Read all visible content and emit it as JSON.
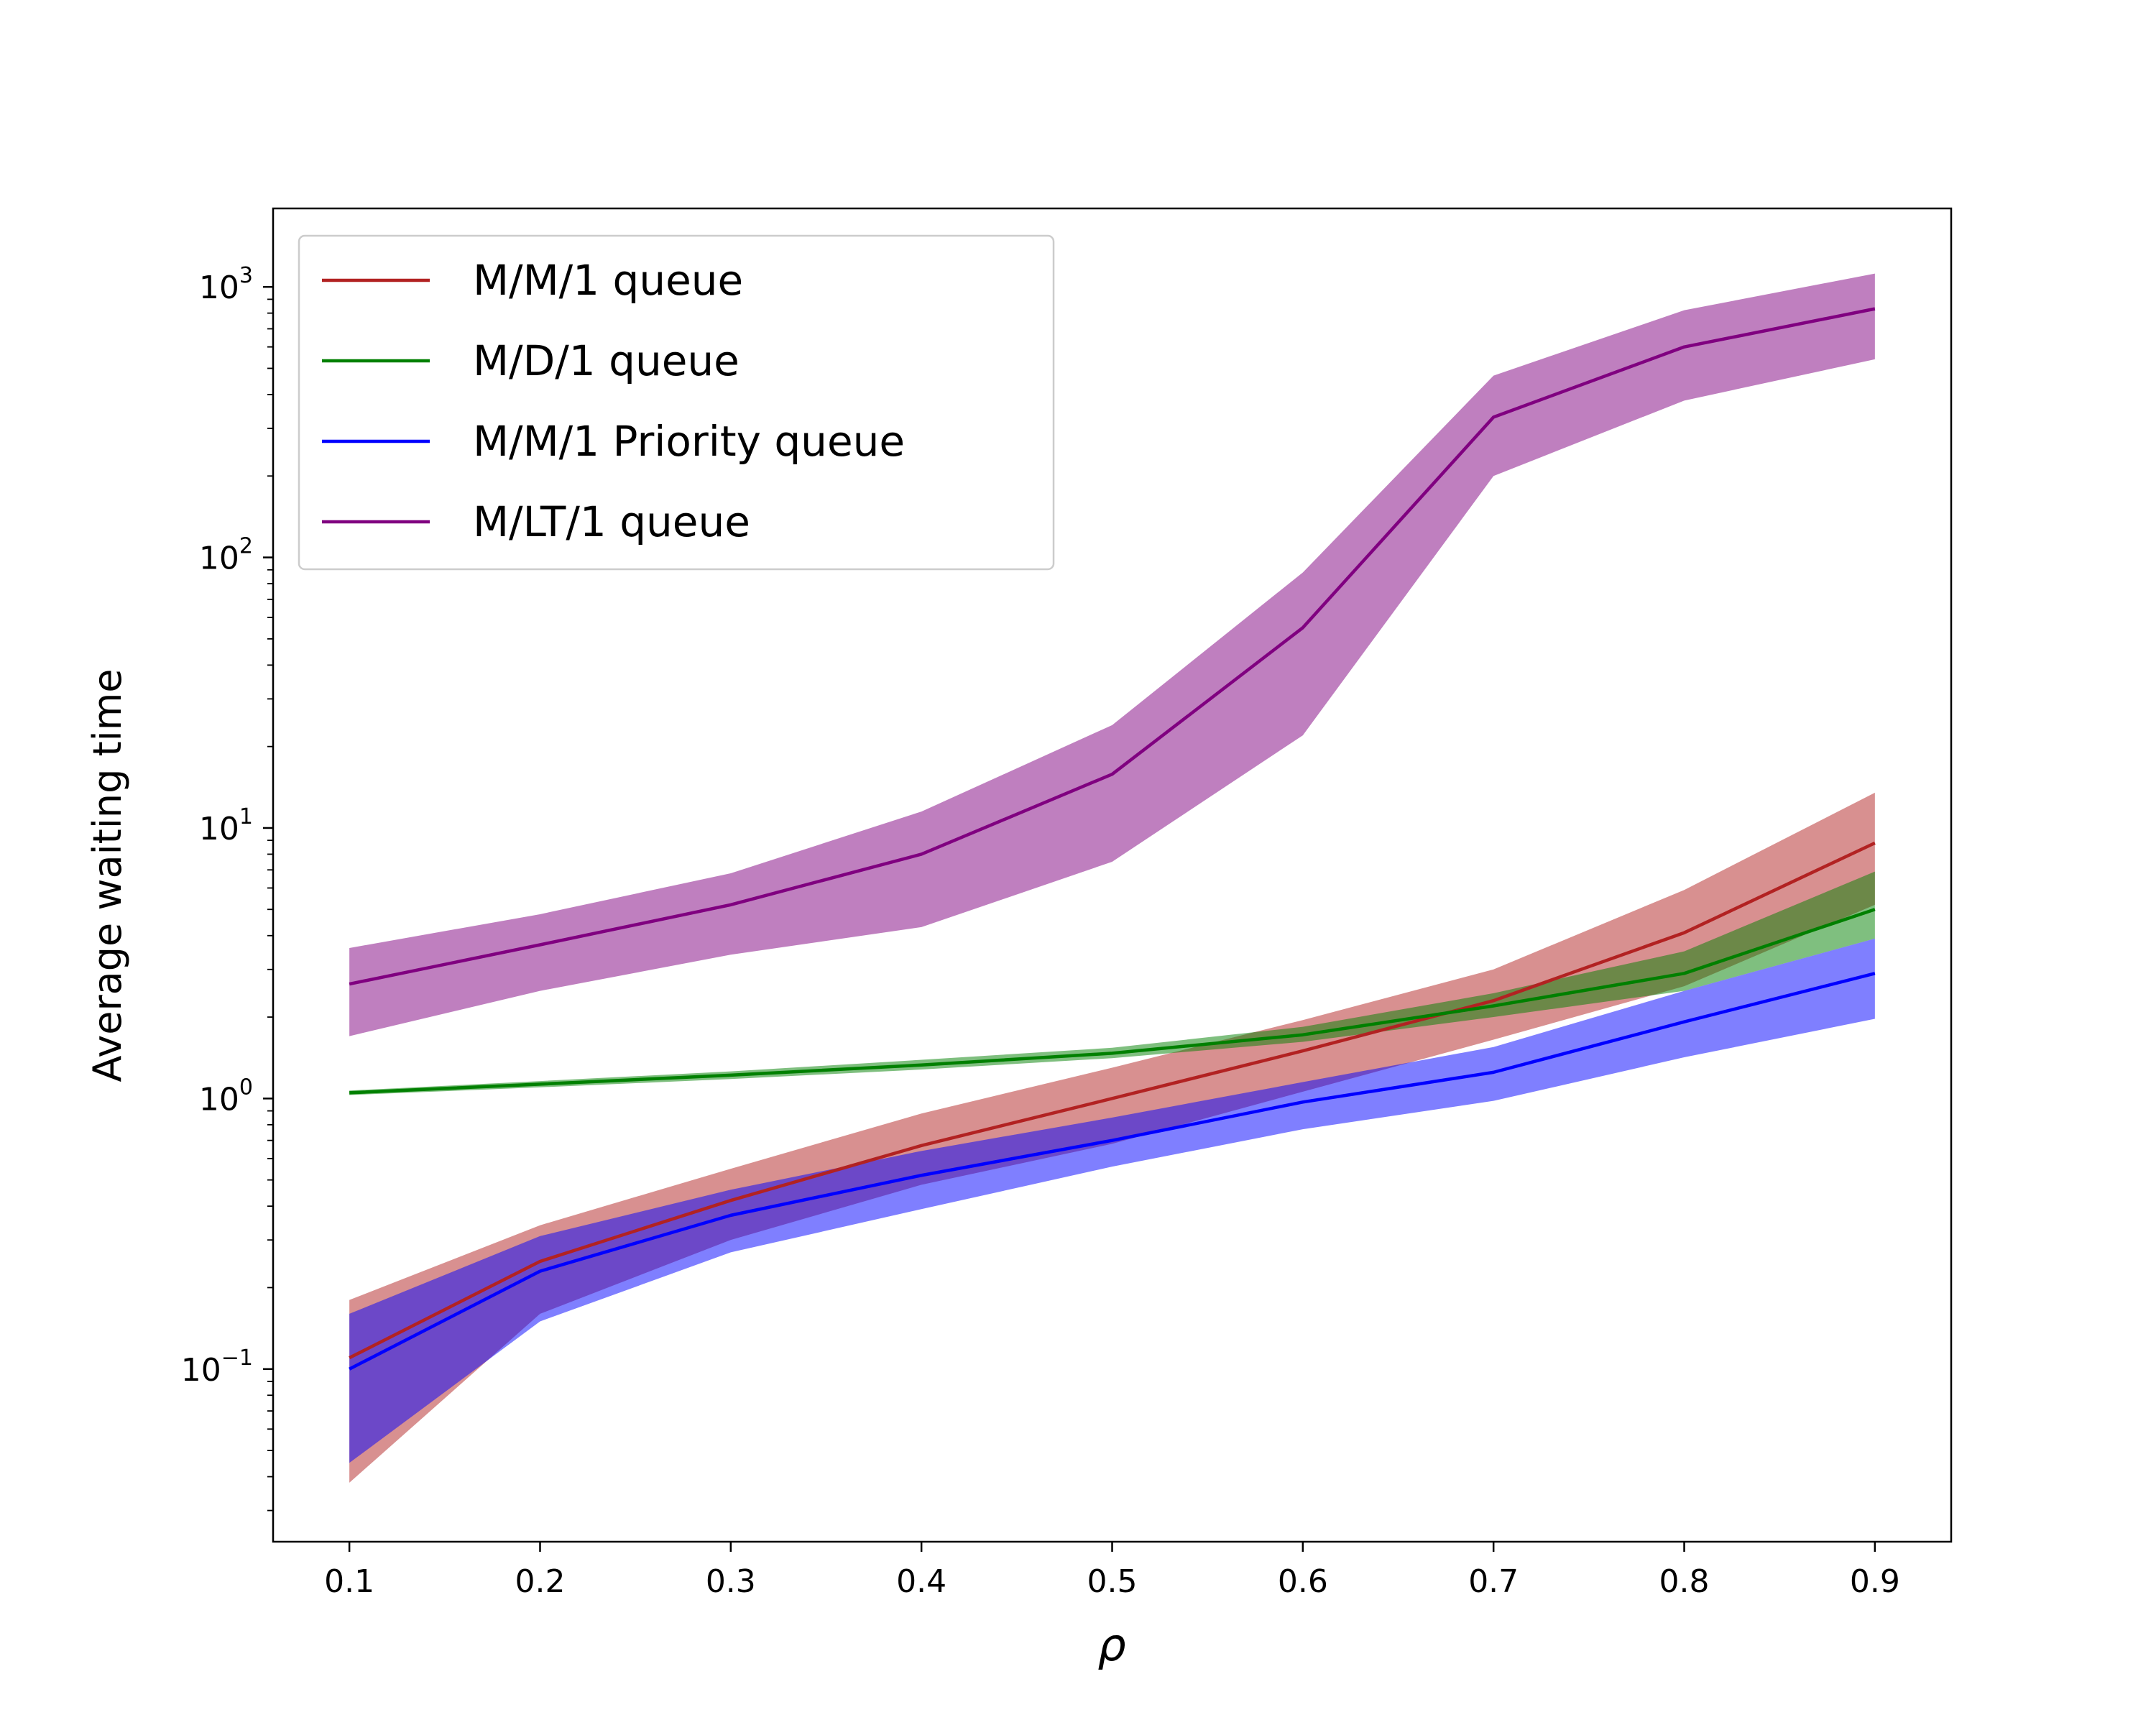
{
  "chart_data": {
    "type": "line",
    "xlabel": "ρ",
    "ylabel": "Average waiting time",
    "yscale": "log",
    "xlim": [
      0.06,
      0.94
    ],
    "ylim": [
      0.023,
      1950
    ],
    "x": [
      0.1,
      0.2,
      0.3,
      0.4,
      0.5,
      0.6,
      0.7,
      0.8,
      0.9
    ],
    "x_ticks": [
      "0.1",
      "0.2",
      "0.3",
      "0.4",
      "0.5",
      "0.6",
      "0.7",
      "0.8",
      "0.9"
    ],
    "y_ticks": [
      {
        "value": 0.1,
        "base": "10",
        "exp": "−1"
      },
      {
        "value": 1,
        "base": "10",
        "exp": "0"
      },
      {
        "value": 10,
        "base": "10",
        "exp": "1"
      },
      {
        "value": 100,
        "base": "10",
        "exp": "2"
      },
      {
        "value": 1000,
        "base": "10",
        "exp": "3"
      }
    ],
    "grid": false,
    "legend_position": "top-left",
    "series": [
      {
        "name": "M/M/1 queue",
        "color": "#b22222",
        "values": [
          0.11,
          0.25,
          0.42,
          0.67,
          1.0,
          1.5,
          2.3,
          4.1,
          8.8
        ],
        "lower": [
          0.038,
          0.16,
          0.3,
          0.48,
          0.68,
          1.06,
          1.65,
          2.6,
          5.2
        ],
        "upper": [
          0.18,
          0.34,
          0.55,
          0.88,
          1.3,
          1.95,
          3.0,
          5.9,
          13.5
        ]
      },
      {
        "name": "M/D/1 queue",
        "color": "#008000",
        "values": [
          1.05,
          1.13,
          1.22,
          1.33,
          1.47,
          1.72,
          2.2,
          2.9,
          5.0
        ],
        "lower": [
          1.03,
          1.1,
          1.18,
          1.28,
          1.41,
          1.62,
          2.0,
          2.5,
          3.9
        ],
        "upper": [
          1.07,
          1.16,
          1.26,
          1.39,
          1.54,
          1.84,
          2.45,
          3.5,
          6.9
        ]
      },
      {
        "name": "M/M/1 Priority queue",
        "color": "#0000ff",
        "values": [
          0.1,
          0.23,
          0.37,
          0.52,
          0.7,
          0.97,
          1.25,
          1.92,
          2.9
        ],
        "lower": [
          0.045,
          0.15,
          0.27,
          0.39,
          0.56,
          0.77,
          0.98,
          1.42,
          1.97
        ],
        "upper": [
          0.16,
          0.31,
          0.46,
          0.64,
          0.85,
          1.15,
          1.55,
          2.5,
          3.9
        ]
      },
      {
        "name": "M/LT/1 queue",
        "color": "#800080",
        "values": [
          2.65,
          3.7,
          5.2,
          8.0,
          15.8,
          55,
          330,
          600,
          830
        ],
        "lower": [
          1.7,
          2.5,
          3.4,
          4.3,
          7.5,
          22,
          200,
          380,
          540
        ],
        "upper": [
          3.6,
          4.8,
          6.8,
          11.5,
          24,
          88,
          470,
          820,
          1120
        ]
      }
    ]
  }
}
